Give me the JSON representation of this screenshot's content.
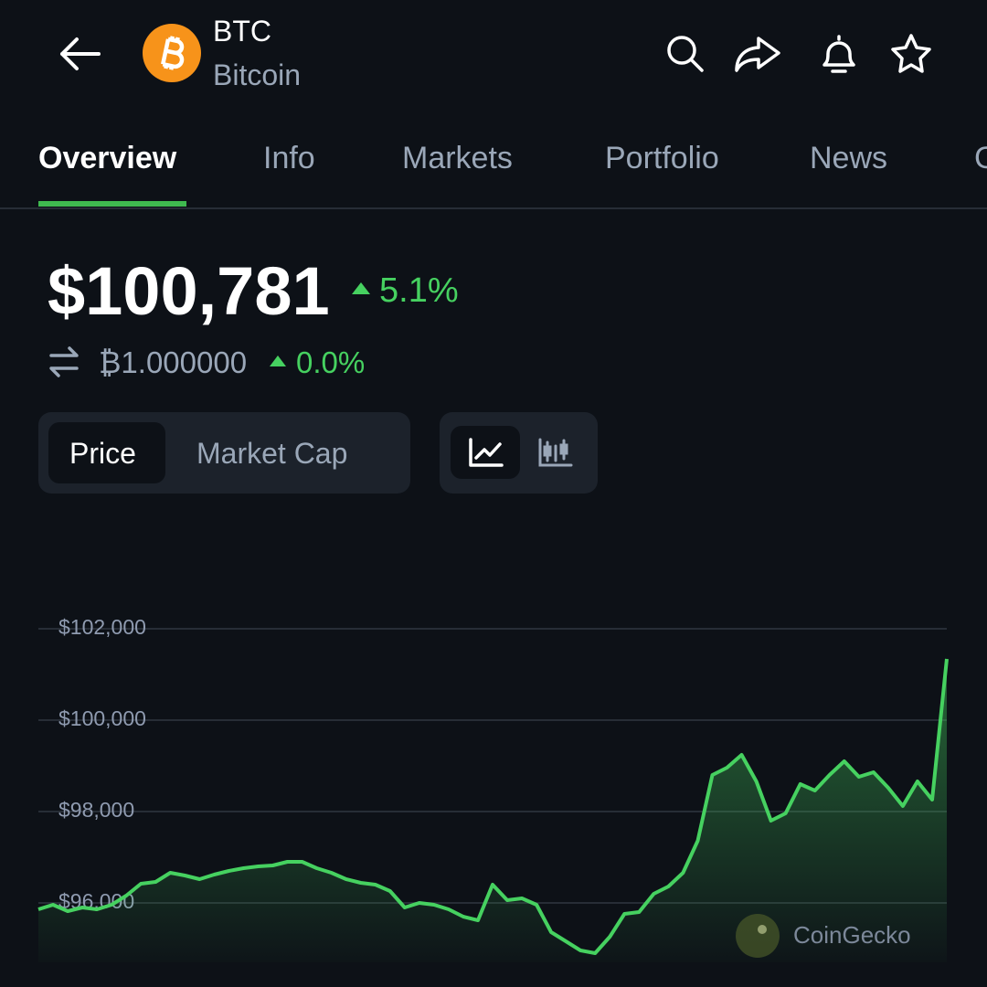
{
  "header": {
    "symbol": "BTC",
    "name": "Bitcoin"
  },
  "tabs": [
    "Overview",
    "Info",
    "Markets",
    "Portfolio",
    "News",
    "G"
  ],
  "price": {
    "value": "$100,781",
    "change": "5.1%",
    "btc_value": "₿1.000000",
    "btc_change": "0.0%"
  },
  "toggles": [
    "Price",
    "Market Cap"
  ],
  "watermark": "CoinGecko",
  "chart_data": {
    "type": "line",
    "color": "#46d160",
    "grid": true,
    "categories": [
      null,
      null,
      null,
      null,
      null,
      null,
      null,
      null,
      null,
      null,
      null,
      null,
      null,
      null,
      null,
      null,
      null,
      null,
      null,
      null,
      null,
      null,
      null,
      null,
      null,
      null,
      null,
      null,
      null,
      null,
      null,
      null,
      null,
      null,
      null,
      null,
      null,
      null,
      null,
      null,
      null,
      null,
      null,
      null,
      null,
      null,
      null,
      null,
      null,
      null,
      null,
      null,
      null,
      null,
      null,
      null,
      null,
      null,
      null,
      null,
      null,
      null,
      null
    ],
    "series": [
      {
        "name": "Price",
        "color": "#46d160",
        "values": [
          95860,
          95960,
          95820,
          95900,
          95860,
          95960,
          96160,
          96420,
          96460,
          96660,
          96600,
          96520,
          96620,
          96700,
          96760,
          96800,
          96820,
          96900,
          96900,
          96760,
          96660,
          96520,
          96440,
          96400,
          96260,
          95900,
          96000,
          95960,
          95860,
          95700,
          95620,
          96400,
          96060,
          96100,
          95960,
          95360,
          95160,
          94960,
          94900,
          95260,
          95760,
          95800,
          96200,
          96360,
          96660,
          97360,
          98800,
          98960,
          99240,
          98660,
          97800,
          97960,
          98600,
          98460,
          98800,
          99100,
          98760,
          98860,
          98520,
          98120,
          98660,
          98260,
          101340
        ]
      }
    ],
    "ylim": [
      94700,
      103000
    ],
    "yticks": [
      {
        "value": 96000,
        "label": "$96,000"
      },
      {
        "value": 98000,
        "label": "$98,000"
      },
      {
        "value": 100000,
        "label": "$100,000"
      },
      {
        "value": 102000,
        "label": "$102,000"
      }
    ]
  }
}
